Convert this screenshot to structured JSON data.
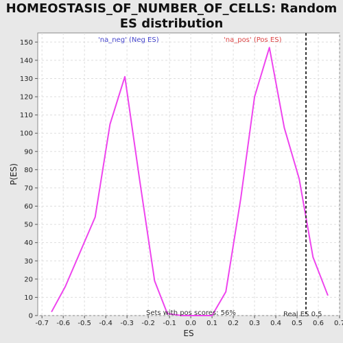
{
  "chart_data": {
    "type": "line",
    "title": "HOMEOSTASIS_OF_NUMBER_OF_CELLS: Random ES distribution",
    "xlabel": "ES",
    "ylabel": "P(ES)",
    "xlim": [
      -0.72,
      0.7
    ],
    "ylim": [
      0,
      155
    ],
    "xticks": [
      -0.7,
      -0.6,
      -0.5,
      -0.4,
      -0.3,
      -0.2,
      -0.1,
      0.0,
      0.1,
      0.2,
      0.3,
      0.4,
      0.5,
      0.6,
      0.7
    ],
    "xtick_labels": [
      "-0.7",
      "-0.6",
      "-0.5",
      "-0.4",
      "-0.3",
      "-0.2",
      "-0.1",
      "0.0",
      "0.1",
      "0.2",
      "0.3",
      "0.4",
      "0.5",
      "0.6",
      "0.7"
    ],
    "yticks": [
      0,
      10,
      20,
      30,
      40,
      50,
      60,
      70,
      80,
      90,
      100,
      110,
      120,
      130,
      140,
      150
    ],
    "ytick_labels": [
      "0",
      "10",
      "20",
      "30",
      "40",
      "50",
      "60",
      "70",
      "80",
      "90",
      "100",
      "110",
      "120",
      "130",
      "140",
      "150"
    ],
    "grid": true,
    "series": [
      {
        "x": [
          -0.655,
          -0.59,
          -0.45,
          -0.38,
          -0.31,
          -0.24,
          -0.17,
          -0.11,
          -0.04,
          0.03,
          0.1,
          0.165,
          0.235,
          0.3,
          0.37,
          0.44,
          0.51,
          0.575,
          0.645
        ],
        "y": [
          2,
          16,
          54,
          105,
          131,
          74,
          19,
          1,
          0,
          0,
          0,
          13,
          64,
          120,
          147,
          103,
          75,
          32,
          11
        ],
        "color": "#ee44ee"
      }
    ],
    "annotations": {
      "neg_label": "'na_neg' (Neg ES)",
      "pos_label": "'na_pos' (Pos ES)",
      "sets_text": "Sets with pos scores: 56%",
      "real_es_text": "Real ES 0.5",
      "real_es_value": 0.542,
      "neg_color": "#4444cc",
      "pos_color": "#dd4444"
    }
  }
}
